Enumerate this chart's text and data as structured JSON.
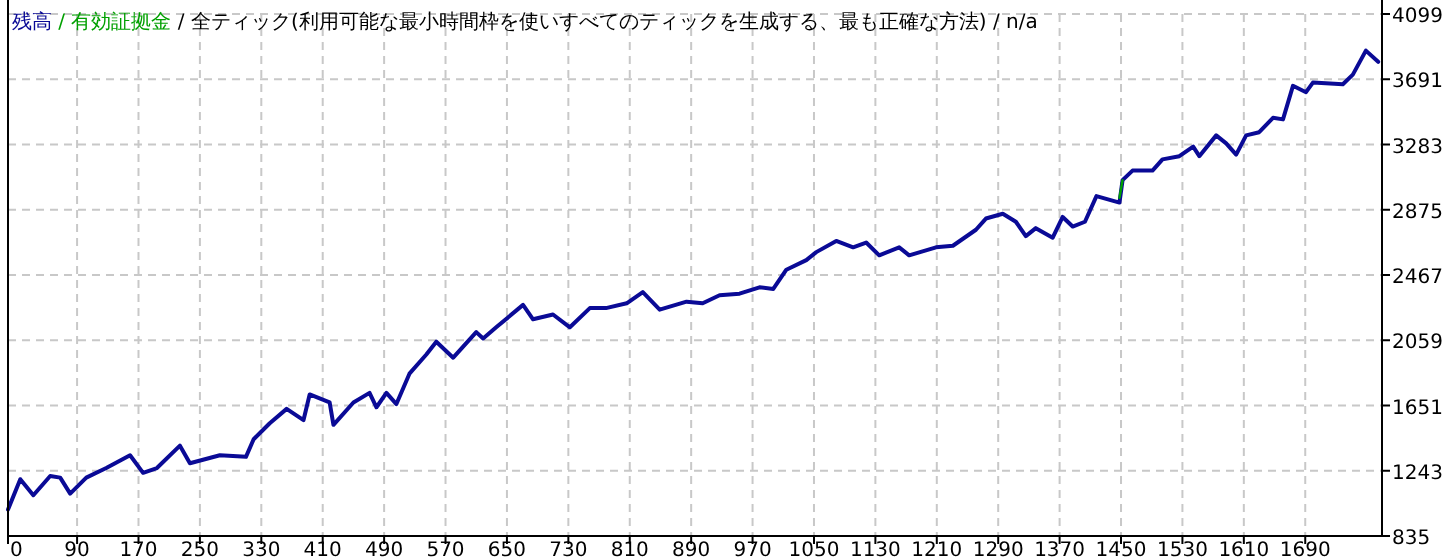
{
  "chart_data": {
    "type": "line",
    "title": "残高 / 有効証拠金 / 全ティック(利用可能な最小時間枠を使いすべてのティックを生成する、最も正確な方法) / n/a",
    "grid": true,
    "xlim": [
      0,
      1790
    ],
    "ylim": [
      835,
      4099
    ],
    "xticks": [
      0,
      90,
      170,
      250,
      330,
      410,
      490,
      570,
      650,
      730,
      810,
      890,
      970,
      1050,
      1130,
      1210,
      1290,
      1370,
      1450,
      1530,
      1610,
      1690
    ],
    "yticks": [
      835,
      1243,
      1651,
      2059,
      2467,
      2875,
      3283,
      3691,
      4099
    ],
    "series": [
      {
        "color": "#0a0a96",
        "x": [
          0,
          16,
          33,
          55,
          68,
          81,
          102,
          128,
          159,
          176,
          194,
          224,
          237,
          276,
          310,
          320,
          341,
          363,
          385,
          393,
          419,
          424,
          450,
          471,
          480,
          493,
          506,
          523,
          545,
          558,
          580,
          610,
          619,
          636,
          671,
          684,
          710,
          732,
          758,
          779,
          806,
          827,
          849,
          884,
          905,
          927,
          953,
          979,
          997,
          1014,
          1040,
          1053,
          1079,
          1101,
          1118,
          1135,
          1161,
          1174,
          1209,
          1231,
          1261,
          1274,
          1296,
          1313,
          1326,
          1339,
          1361,
          1374,
          1387,
          1403,
          1418,
          1448,
          1452,
          1465,
          1491,
          1504,
          1526,
          1544,
          1552,
          1574,
          1587,
          1600,
          1613,
          1630,
          1648,
          1661,
          1674,
          1691,
          1700,
          1739,
          1752,
          1769,
          1785
        ],
        "values": [
          1000,
          1190,
          1090,
          1210,
          1200,
          1100,
          1200,
          1260,
          1340,
          1230,
          1260,
          1400,
          1290,
          1340,
          1330,
          1440,
          1540,
          1630,
          1560,
          1720,
          1670,
          1530,
          1670,
          1730,
          1640,
          1730,
          1660,
          1850,
          1970,
          2050,
          1950,
          2110,
          2070,
          2140,
          2280,
          2190,
          2220,
          2140,
          2260,
          2260,
          2290,
          2360,
          2250,
          2300,
          2290,
          2340,
          2350,
          2390,
          2380,
          2500,
          2560,
          2610,
          2680,
          2640,
          2670,
          2590,
          2640,
          2590,
          2640,
          2650,
          2750,
          2820,
          2850,
          2800,
          2710,
          2760,
          2700,
          2830,
          2770,
          2800,
          2960,
          2920,
          3060,
          3120,
          3120,
          3190,
          3210,
          3270,
          3210,
          3340,
          3290,
          3220,
          3340,
          3360,
          3450,
          3440,
          3650,
          3610,
          3670,
          3660,
          3720,
          3870,
          3800
        ]
      },
      {
        "color": "#00a000",
        "x": [
          1448,
          1452
        ],
        "values": [
          2950,
          3060
        ]
      }
    ]
  }
}
